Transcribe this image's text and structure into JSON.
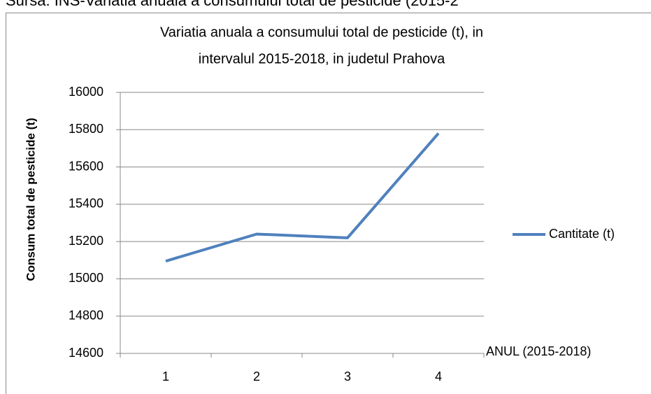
{
  "caption": "Sursa: INS-Variatia anuala a consumului total de pesticide (2015-2",
  "chart_data": {
    "type": "line",
    "title": [
      "Variatia anuala a consumului total de pesticide (t), in",
      "intervalul 2015-2018, in judetul Prahova"
    ],
    "y_label": "Consum total de pesticide (t)",
    "x_label": "ANUL (2015-2018)",
    "categories": [
      "1",
      "2",
      "3",
      "4"
    ],
    "series": [
      {
        "name": "Cantitate (t)",
        "color": "#4f81bd",
        "values": [
          15095,
          15240,
          15220,
          15780
        ]
      }
    ],
    "ylim": [
      14600,
      16000
    ],
    "yticks": [
      14600,
      14800,
      15000,
      15200,
      15400,
      15600,
      15800,
      16000
    ],
    "grid": true,
    "legend": "right"
  }
}
